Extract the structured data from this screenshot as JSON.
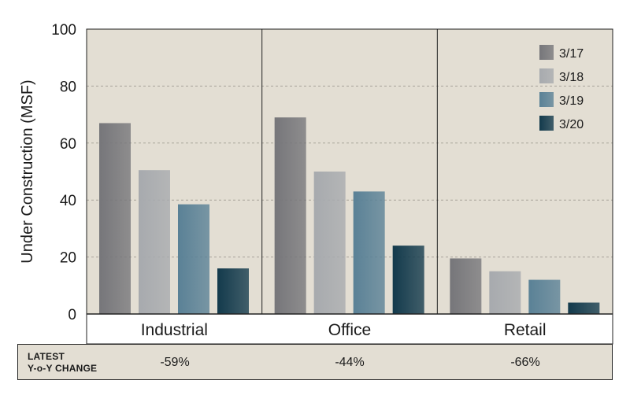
{
  "chart_data": {
    "type": "bar",
    "categories": [
      "Industrial",
      "Office",
      "Retail"
    ],
    "series": [
      {
        "name": "3/17",
        "values": [
          67,
          69,
          19.5
        ],
        "color": "#76767a"
      },
      {
        "name": "3/18",
        "values": [
          50.5,
          50,
          15
        ],
        "color": "#a7aaae"
      },
      {
        "name": "3/19",
        "values": [
          38.5,
          43,
          12
        ],
        "color": "#5a8196"
      },
      {
        "name": "3/20",
        "values": [
          16,
          24,
          4
        ],
        "color": "#133a4c"
      }
    ],
    "ylabel": "Under Construction (MSF)",
    "ylim": [
      0,
      100
    ],
    "yticks": [
      "0",
      "20",
      "40",
      "60",
      "80",
      "100"
    ],
    "grid": true,
    "legend_position": "top-right",
    "background": "#e3ded3"
  },
  "yoy": {
    "label": "LATEST\nY-o-Y CHANGE",
    "values": [
      "-59%",
      "-44%",
      "-66%"
    ]
  }
}
